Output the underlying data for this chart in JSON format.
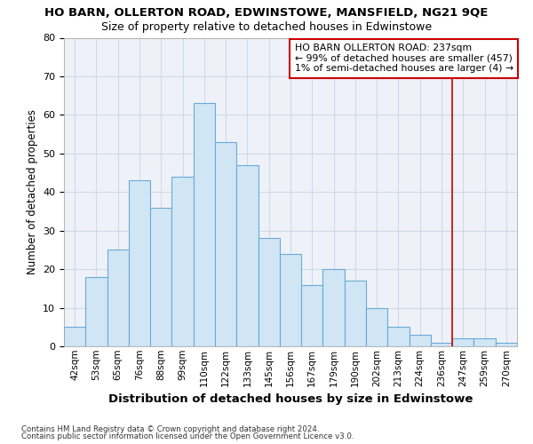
{
  "title_line1": "HO BARN, OLLERTON ROAD, EDWINSTOWE, MANSFIELD, NG21 9QE",
  "title_line2": "Size of property relative to detached houses in Edwinstowe",
  "xlabel": "Distribution of detached houses by size in Edwinstowe",
  "ylabel": "Number of detached properties",
  "footnote1": "Contains HM Land Registry data © Crown copyright and database right 2024.",
  "footnote2": "Contains public sector information licensed under the Open Government Licence v3.0.",
  "categories": [
    "42sqm",
    "53sqm",
    "65sqm",
    "76sqm",
    "88sqm",
    "99sqm",
    "110sqm",
    "122sqm",
    "133sqm",
    "145sqm",
    "156sqm",
    "167sqm",
    "179sqm",
    "190sqm",
    "202sqm",
    "213sqm",
    "224sqm",
    "236sqm",
    "247sqm",
    "259sqm",
    "270sqm"
  ],
  "values": [
    5,
    18,
    25,
    43,
    36,
    44,
    63,
    53,
    47,
    28,
    24,
    16,
    20,
    17,
    10,
    5,
    3,
    1,
    2,
    2,
    1
  ],
  "bar_color": "#d0e6f5",
  "bar_edge_color": "#6aaad4",
  "annotation_line1": "HO BARN OLLERTON ROAD: 237sqm",
  "annotation_line2": "← 99% of detached houses are smaller (457)",
  "annotation_line3": "1% of semi-detached houses are larger (4) →",
  "annotation_box_color": "#ffffff",
  "annotation_box_edge": "#cc0000",
  "vline_x": 17.5,
  "vline_color": "#cc0000",
  "ylim": [
    0,
    80
  ],
  "yticks": [
    0,
    10,
    20,
    30,
    40,
    50,
    60,
    70,
    80
  ],
  "grid_color": "#d0d8e8",
  "bg_color": "#ffffff",
  "plot_bg_color": "#eef2f8"
}
